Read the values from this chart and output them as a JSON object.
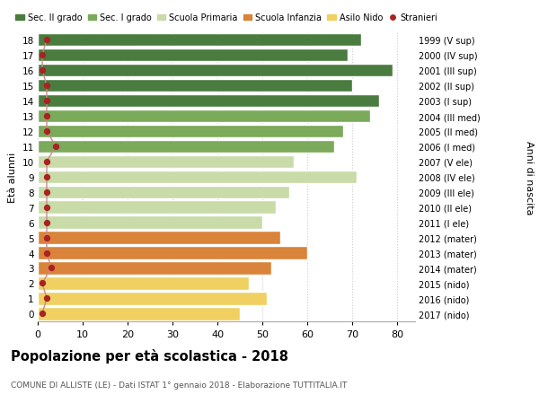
{
  "ages": [
    18,
    17,
    16,
    15,
    14,
    13,
    12,
    11,
    10,
    9,
    8,
    7,
    6,
    5,
    4,
    3,
    2,
    1,
    0
  ],
  "right_labels": [
    "1999 (V sup)",
    "2000 (IV sup)",
    "2001 (III sup)",
    "2002 (II sup)",
    "2003 (I sup)",
    "2004 (III med)",
    "2005 (II med)",
    "2006 (I med)",
    "2007 (V ele)",
    "2008 (IV ele)",
    "2009 (III ele)",
    "2010 (II ele)",
    "2011 (I ele)",
    "2012 (mater)",
    "2013 (mater)",
    "2014 (mater)",
    "2015 (nido)",
    "2016 (nido)",
    "2017 (nido)"
  ],
  "bar_values": [
    72,
    69,
    79,
    70,
    76,
    74,
    68,
    66,
    57,
    71,
    56,
    53,
    50,
    54,
    60,
    52,
    47,
    51,
    45
  ],
  "stranieri": [
    2,
    1,
    1,
    2,
    2,
    2,
    2,
    4,
    2,
    2,
    2,
    2,
    2,
    2,
    2,
    3,
    1,
    2,
    1
  ],
  "bar_colors": [
    "#4a7c3f",
    "#4a7c3f",
    "#4a7c3f",
    "#4a7c3f",
    "#4a7c3f",
    "#7aaa5a",
    "#7aaa5a",
    "#7aaa5a",
    "#c8dba8",
    "#c8dba8",
    "#c8dba8",
    "#c8dba8",
    "#c8dba8",
    "#d9843a",
    "#d9843a",
    "#d9843a",
    "#f0d060",
    "#f0d060",
    "#f0d060"
  ],
  "legend_labels": [
    "Sec. II grado",
    "Sec. I grado",
    "Scuola Primaria",
    "Scuola Infanzia",
    "Asilo Nido",
    "Stranieri"
  ],
  "legend_colors": [
    "#4a7c3f",
    "#7aaa5a",
    "#c8dba8",
    "#d9843a",
    "#f0d060",
    "#cc2222"
  ],
  "title": "Popolazione per età scolastica - 2018",
  "subtitle": "COMUNE DI ALLISTE (LE) - Dati ISTAT 1° gennaio 2018 - Elaborazione TUTTITALIA.IT",
  "ylabel_left": "Età alunni",
  "ylabel_right": "Anni di nascita",
  "xlim": [
    0,
    84
  ],
  "background_color": "#ffffff",
  "grid_color": "#cccccc",
  "bar_edge_color": "#ffffff",
  "stranieri_color": "#aa2222",
  "stranieri_line_color": "#cc8888"
}
